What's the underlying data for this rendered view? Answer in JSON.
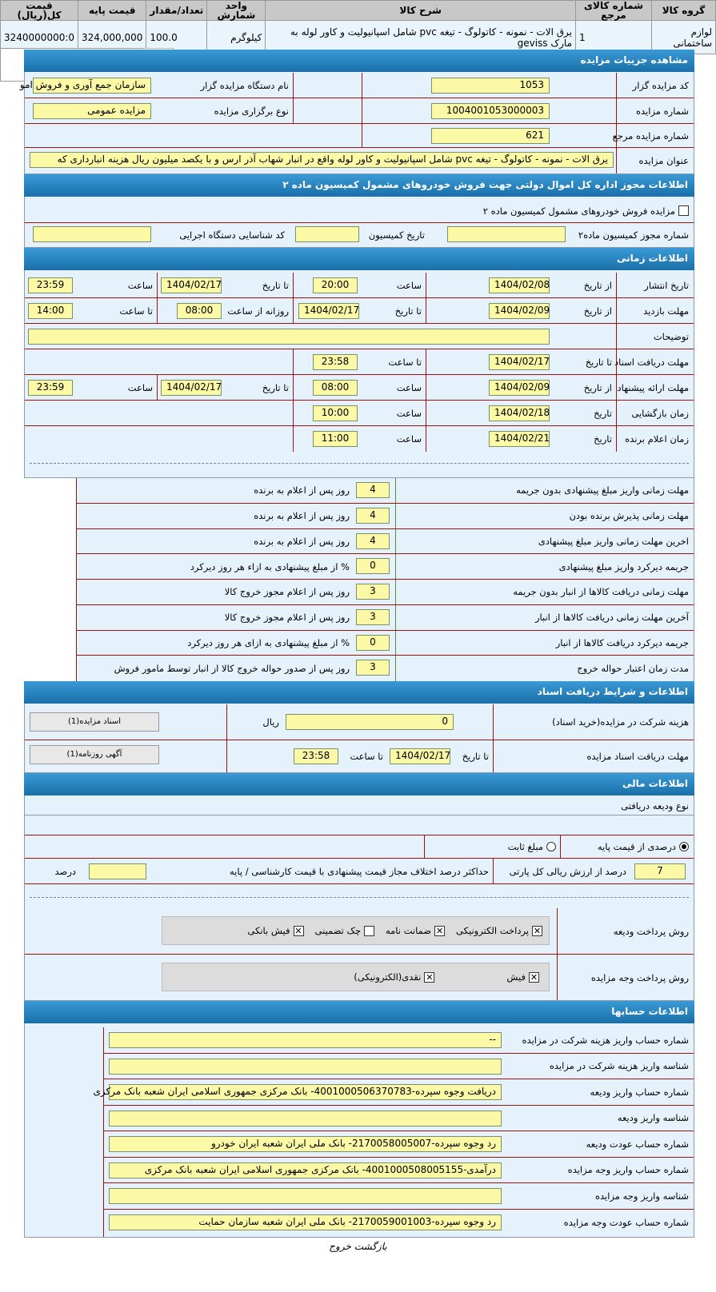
{
  "items_table": {
    "headers": [
      "گروه کالا",
      "شماره کالای مرجع",
      "شرح کالا",
      "واحد شمارش",
      "تعداد/مقدار",
      "قیمت پایه",
      "قیمت کل(ریال)"
    ],
    "rows": [
      {
        "group": "لوازم ساختمانی",
        "ref": "1",
        "desc": "یرق الات - نمونه - کاتولوگ - تیغه pvc شامل اسپانیولیت و کاور لوله به مارک geviss",
        "unit": "کیلوگرم",
        "qty": "100.0",
        "base_price": "324,000,000",
        "total": "3240000000:0"
      }
    ]
  },
  "details": {
    "title": "مشاهده جزییات مزایده",
    "auctioneer_code_label": "کد مزایده گزار",
    "auctioneer_code": "1053",
    "org_name_label": "نام دستگاه مزایده گزار",
    "org_name": "سازمان جمع آوری و فروش امو",
    "auction_no_label": "شماره مزایده",
    "auction_no": "1004001053000003",
    "type_label": "نوع برگزاری مزایده",
    "type": "مزایده عمومی",
    "ref_no_label": "شماره مزایده مرجع",
    "ref_no": "621",
    "subject_label": "عنوان مزایده",
    "subject": "یرق الات - نمونه - کاتولوگ - تیغه pvc شامل اسپانیولیت و کاور لوله واقع در انبار شهاب آذر ارس و با یکصد میلیون ریال هزینه انبارداری که"
  },
  "commission": {
    "title": "اطلاعات مجوز اداره کل اموال دولتی جهت فروش خودروهای مشمول کمیسیون ماده ۲",
    "checkbox_label": "مزایده فروش خودروهای مشمول کمیسیون ماده ۲",
    "permit_label": "شماره مجوز کمیسیون ماده۲",
    "date_label": "تاریخ کمیسیون",
    "id_label": "کد شناسایی دستگاه اجرایی"
  },
  "timing": {
    "title": "اطلاعات زمانی",
    "publish": {
      "label": "تاریخ انتشار",
      "from": "از تاریخ",
      "from_date": "1404/02/08",
      "time_l": "ساعت",
      "time": "20:00",
      "to": "تا تاریخ",
      "to_date": "1404/02/17",
      "time2_l": "ساعت",
      "time2": "23:59"
    },
    "visit": {
      "label": "مهلت بازدید",
      "from": "از تاریخ",
      "from_date": "1404/02/09",
      "to": "تا تاریخ",
      "to_date": "1404/02/17",
      "daily": "روزانه از ساعت",
      "from_time": "08:00",
      "to_t": "تا ساعت",
      "to_time": "14:00"
    },
    "notes_label": "توضیحات",
    "docs": {
      "label": "مهلت دریافت اسناد",
      "to": "تا تاریخ",
      "date": "1404/02/17",
      "time_l": "تا ساعت",
      "time": "23:58"
    },
    "offer": {
      "label": "مهلت ارائه پیشنهاد",
      "from": "از تاریخ",
      "from_date": "1404/02/09",
      "time_l": "ساعت",
      "time": "08:00",
      "to": "تا تاریخ",
      "to_date": "1404/02/17",
      "time2_l": "ساعت",
      "time2": "23:59"
    },
    "opening": {
      "label": "زمان بازگشایی",
      "d": "تاریخ",
      "date": "1404/02/18",
      "time_l": "ساعت",
      "time": "10:00"
    },
    "winner": {
      "label": "زمان اعلام برنده",
      "d": "تاریخ",
      "date": "1404/02/21",
      "time_l": "ساعت",
      "time": "11:00"
    }
  },
  "deadlines": [
    {
      "label": "مهلت زمانی واریز مبلغ پیشنهادی بدون جریمه",
      "value": "4",
      "suffix": "روز پس از اعلام به برنده"
    },
    {
      "label": "مهلت زمانی پذیرش برنده بودن",
      "value": "4",
      "suffix": "روز پس از اعلام به برنده"
    },
    {
      "label": "اخرین مهلت زمانی واریز مبلغ پیشنهادی",
      "value": "4",
      "suffix": "روز پس از اعلام به برنده"
    },
    {
      "label": "جریمه دیرکرد واریز مبلغ پیشنهادی",
      "value": "0",
      "suffix": "% از مبلغ پیشنهادی به ازاء هر روز دیرکرد"
    },
    {
      "label": "مهلت زمانی دریافت کالاها از انبار بدون جریمه",
      "value": "3",
      "suffix": "روز پس از اعلام مجوز خروج کالا"
    },
    {
      "label": "آخرین مهلت زمانی دریافت کالاها از انبار",
      "value": "3",
      "suffix": "روز پس از اعلام مجوز خروج کالا"
    },
    {
      "label": "جریمه دیرکرد دریافت کالاها از انبار",
      "value": "0",
      "suffix": "% از مبلغ پیشنهادی به ازای هر روز دیرکرد"
    },
    {
      "label": "مدت زمان اعتبار حواله خروج",
      "value": "3",
      "suffix": "روز پس از صدور حواله خروج کالا از انبار توسط مامور فروش"
    }
  ],
  "documents": {
    "title": "اطلاعات و شرایط دریافت اسناد",
    "fee_label": "هزینه شرکت در مزایده(خرید اسناد)",
    "fee": "0",
    "currency": "ریال",
    "btn1": "اسناد مزایده(1)",
    "deadline_label": "مهلت دریافت اسناد مزایده",
    "to": "تا تاریخ",
    "date": "1404/02/17",
    "to_time": "تا ساعت",
    "time": "23:58",
    "btn2": "آگهی روزنامه(1)"
  },
  "financial": {
    "title": "اطلاعات مالی",
    "deposit_type_label": "نوع ودیعه دریافتی",
    "radio_percent": "درصدی از قیمت پایه",
    "radio_fixed": "مبلغ ثابت",
    "percent": "7",
    "percent_suffix": "درصد از ارزش ریالی کل پارتی",
    "max_diff_label": "حداکثر درصد اختلاف مجاز قیمت پیشنهادی با قیمت کارشناسی / پایه",
    "max_diff_unit": "درصد",
    "deposit_method_label": "روش پرداخت ودیعه",
    "deposit_methods": [
      {
        "label": "پرداخت الکترونیکی",
        "checked": true
      },
      {
        "label": "ضمانت نامه",
        "checked": true
      },
      {
        "label": "چک تضمینی",
        "checked": false
      },
      {
        "label": "فیش بانکی",
        "checked": true
      }
    ],
    "payment_method_label": "روش پرداخت وجه مزایده",
    "payment_methods": [
      {
        "label": "فیش",
        "checked": true
      },
      {
        "label": "نقدی(الکترونیکی)",
        "checked": true
      }
    ]
  },
  "accounts": {
    "title": "اطلاعات حسابها",
    "rows": [
      {
        "label": "شماره حساب واریز هزینه شرکت در مزایده",
        "value": "--"
      },
      {
        "label": "شناسه واریز هزینه شرکت در مزایده",
        "value": ""
      },
      {
        "label": "شماره حساب واریز ودیعه",
        "value": "دریافت وجوه سپرده-4001000506370783- بانک مرکزی جمهوری اسلامی ایران شعبه بانک مرکزی"
      },
      {
        "label": "شناسه واریز ودیعه",
        "value": ""
      },
      {
        "label": "شماره حساب عودت ودیعه",
        "value": "رد وجوه سپرده-2170058005007- بانک ملی ایران شعبه ایران خودرو"
      },
      {
        "label": "شماره حساب واریز وجه مزایده",
        "value": "درآمدی-4001000508005155- بانک مرکزی جمهوری اسلامی ایران شعبه بانک مرکزی"
      },
      {
        "label": "شناسه واریز وجه مزایده",
        "value": ""
      },
      {
        "label": "شماره حساب عودت وجه مزایده",
        "value": "رد وجوه سپرده-2170059001003- بانک ملی ایران شعبه سازمان حمایت"
      }
    ]
  },
  "footer": {
    "back": "بازگشت",
    "exit": "خروج"
  },
  "colors": {
    "header": "#1a6fa8",
    "panel": "#e6f2fb",
    "input": "#fbf8a6",
    "divider": "#a01010"
  }
}
